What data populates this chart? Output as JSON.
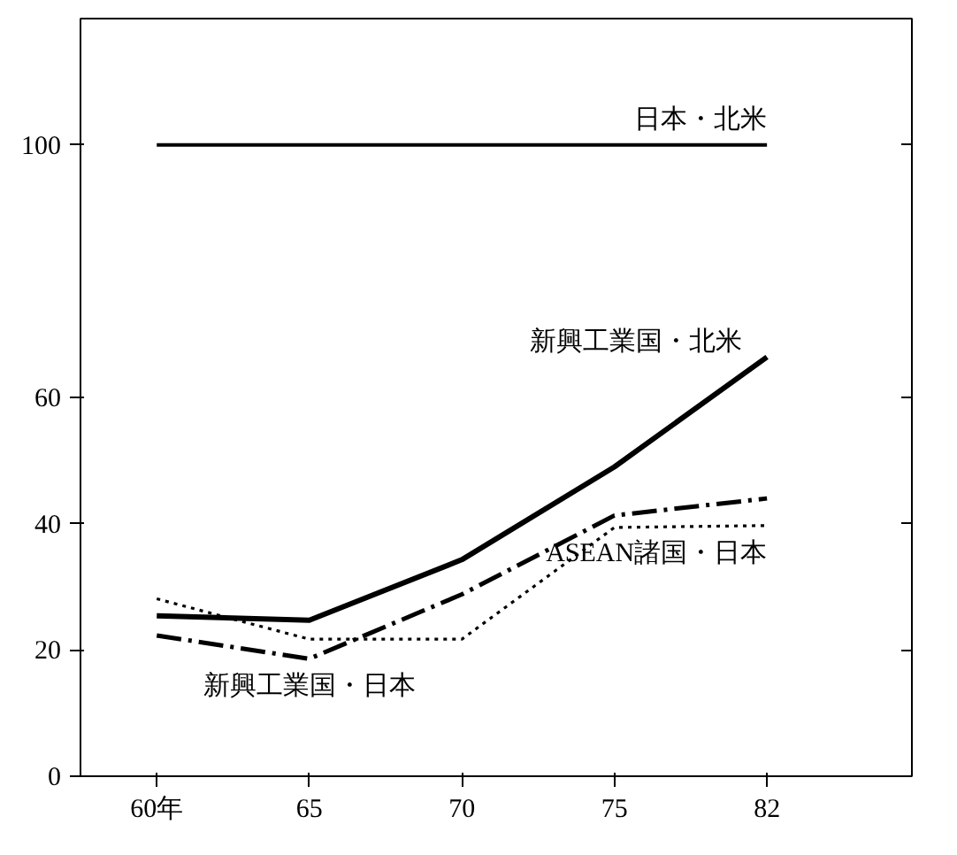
{
  "chart_data": {
    "type": "line",
    "categories": [
      "60年",
      "65",
      "70",
      "75",
      "82"
    ],
    "ylim": [
      0,
      120
    ],
    "yticks": [
      0,
      20,
      40,
      60,
      100
    ],
    "grid": false,
    "marker": "none",
    "series": [
      {
        "name": "日本・北米",
        "color": "#000000",
        "line_style": "solid",
        "values": [
          100,
          100,
          100,
          100,
          100
        ]
      },
      {
        "name": "新興工業国・北米",
        "color": "#000000",
        "line_style": "solid",
        "values": [
          25.4,
          24.7,
          34.3,
          49,
          66.4
        ]
      },
      {
        "name": "新興工業国・日本",
        "color": "#000000",
        "line_style": "dashdot",
        "values": [
          22.3,
          18.6,
          28.8,
          41.3,
          44
        ]
      },
      {
        "name": "ASEAN諸国・日本",
        "color": "#000000",
        "line_style": "dotted",
        "values": [
          28.1,
          21.7,
          21.7,
          39.4,
          39.7
        ]
      }
    ]
  }
}
